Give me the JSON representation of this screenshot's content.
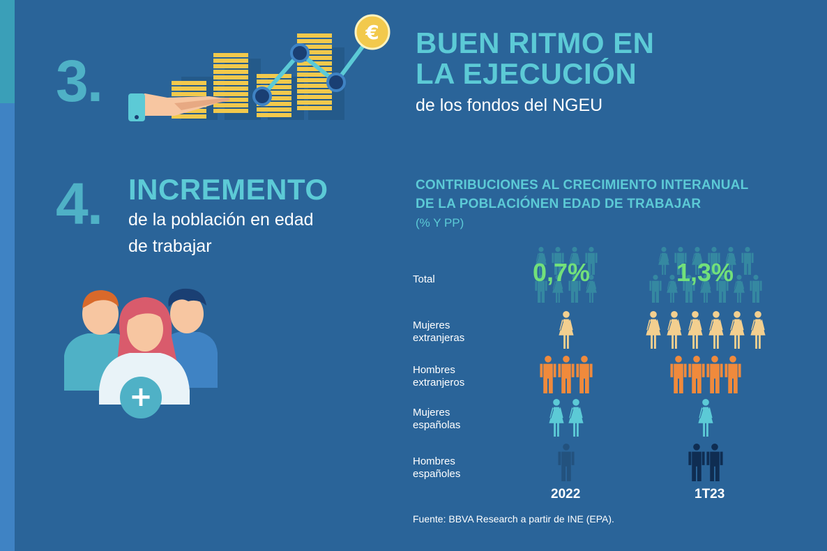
{
  "section3": {
    "number": "3.",
    "title_line1": "BUEN RITMO EN",
    "title_line2": "LA EJECUCIÓN",
    "subtitle": "de los fondos del NGEU",
    "coin_symbol": "€",
    "illustration": "hand-with-coin-stacks-and-growth-line-icon"
  },
  "section4": {
    "number": "4.",
    "title": "INCREMENTO",
    "subtitle_line1": "de la población en edad",
    "subtitle_line2": "de trabajar",
    "plus_symbol": "+",
    "illustration": "group-of-people-icon"
  },
  "chart": {
    "title_line1": "CONTRIBUCIONES AL CRECIMIENTO INTERANUAL",
    "title_line2": "DE LA POBLACIÓNEN EDAD DE TRABAJAR",
    "unit": "(% Y PP)",
    "source": "Fuente: BBVA Research a partir de INE (EPA)."
  },
  "chart_data": {
    "type": "table",
    "columns": [
      "2022",
      "1T23"
    ],
    "rows": [
      {
        "label_line1": "Total",
        "label_line2": "",
        "values": [
          "0,7%",
          "1,3%"
        ]
      },
      {
        "label_line1": "Mujeres",
        "label_line2": "extranjeras",
        "icons": [
          1,
          6
        ],
        "color": "#f3cf8f"
      },
      {
        "label_line1": "Hombres",
        "label_line2": "extranjeros",
        "icons": [
          3,
          4
        ],
        "color": "#f08a3c"
      },
      {
        "label_line1": "Mujeres",
        "label_line2": "españolas",
        "icons": [
          2,
          1
        ],
        "color": "#5ccad6"
      },
      {
        "label_line1": "Hombres",
        "label_line2": "españoles",
        "icons": [
          1,
          2
        ],
        "colors": [
          "#23527e",
          "#0f2d52"
        ]
      }
    ]
  },
  "colors": {
    "background": "#2a6499",
    "accent_teal": "#5ccad6",
    "number_teal": "#4fb1c6",
    "total_green": "#72e07a",
    "coin_gold": "#f2c94c"
  }
}
